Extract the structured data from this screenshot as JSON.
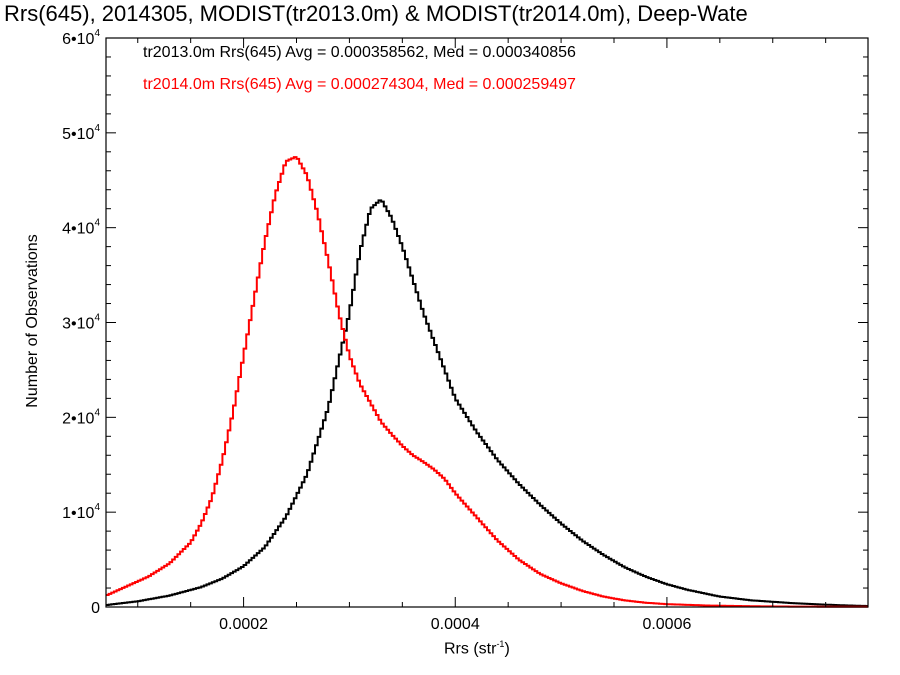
{
  "chart_data": {
    "type": "line",
    "title": "Rrs(645), 2014305, MODIST(tr2013.0m) & MODIST(tr2014.0m), Deep-Wate",
    "xlabel": "Rrs (str",
    "xlabel_exp": "-1",
    "xlabel_close": ")",
    "ylabel": "Number of Observations",
    "xlim": [
      7e-05,
      0.00079
    ],
    "ylim": [
      0,
      60000
    ],
    "x_ticks": [
      {
        "value": 0.0002,
        "label": "0.0002"
      },
      {
        "value": 0.0004,
        "label": "0.0004"
      },
      {
        "value": 0.0006,
        "label": "0.0006"
      }
    ],
    "y_ticks": [
      {
        "value": 0,
        "base": "0",
        "exp": ""
      },
      {
        "value": 10000,
        "base": "1•10",
        "exp": "4"
      },
      {
        "value": 20000,
        "base": "2•10",
        "exp": "4"
      },
      {
        "value": 30000,
        "base": "3•10",
        "exp": "4"
      },
      {
        "value": 40000,
        "base": "4•10",
        "exp": "4"
      },
      {
        "value": 50000,
        "base": "5•10",
        "exp": "4"
      },
      {
        "value": 60000,
        "base": "6•10",
        "exp": "4"
      }
    ],
    "series": [
      {
        "name": "tr2013.0m Rrs(645) Avg = 0.000358562, Med = 0.000340856",
        "color": "#000000",
        "points": [
          [
            7e-05,
            200
          ],
          [
            0.0001,
            600
          ],
          [
            0.00013,
            1200
          ],
          [
            0.00016,
            2100
          ],
          [
            0.00018,
            3000
          ],
          [
            0.0002,
            4300
          ],
          [
            0.00022,
            6300
          ],
          [
            0.00024,
            9500
          ],
          [
            0.00026,
            14000
          ],
          [
            0.00028,
            21000
          ],
          [
            0.0003,
            31000
          ],
          [
            0.00031,
            37500
          ],
          [
            0.00032,
            42000
          ],
          [
            0.00033,
            43000
          ],
          [
            0.00034,
            41000
          ],
          [
            0.00035,
            38000
          ],
          [
            0.00036,
            34500
          ],
          [
            0.00037,
            31000
          ],
          [
            0.00038,
            28000
          ],
          [
            0.00039,
            25000
          ],
          [
            0.0004,
            22000
          ],
          [
            0.00042,
            18500
          ],
          [
            0.00044,
            15500
          ],
          [
            0.00046,
            13000
          ],
          [
            0.00048,
            10800
          ],
          [
            0.0005,
            8800
          ],
          [
            0.00052,
            7000
          ],
          [
            0.00054,
            5500
          ],
          [
            0.00056,
            4200
          ],
          [
            0.00058,
            3200
          ],
          [
            0.0006,
            2400
          ],
          [
            0.00062,
            1800
          ],
          [
            0.00065,
            1100
          ],
          [
            0.00068,
            700
          ],
          [
            0.00072,
            400
          ],
          [
            0.00076,
            200
          ],
          [
            0.00079,
            100
          ]
        ]
      },
      {
        "name": "tr2014.0m Rrs(645) Avg = 0.000274304, Med = 0.000259497",
        "color": "#ff0000",
        "points": [
          [
            7e-05,
            1200
          ],
          [
            9e-05,
            2200
          ],
          [
            0.00011,
            3200
          ],
          [
            0.00013,
            4600
          ],
          [
            0.00015,
            6800
          ],
          [
            0.00016,
            8800
          ],
          [
            0.00017,
            11500
          ],
          [
            0.00018,
            15500
          ],
          [
            0.00019,
            20500
          ],
          [
            0.0002,
            26500
          ],
          [
            0.00021,
            32500
          ],
          [
            0.00022,
            38500
          ],
          [
            0.00023,
            43500
          ],
          [
            0.00024,
            47000
          ],
          [
            0.00025,
            47500
          ],
          [
            0.00026,
            45500
          ],
          [
            0.00027,
            41500
          ],
          [
            0.00028,
            36500
          ],
          [
            0.00029,
            31000
          ],
          [
            0.0003,
            26500
          ],
          [
            0.00031,
            23500
          ],
          [
            0.00032,
            21500
          ],
          [
            0.00033,
            19500
          ],
          [
            0.00034,
            18200
          ],
          [
            0.00035,
            17000
          ],
          [
            0.00036,
            16000
          ],
          [
            0.00037,
            15300
          ],
          [
            0.00038,
            14500
          ],
          [
            0.00039,
            13500
          ],
          [
            0.0004,
            12000
          ],
          [
            0.00042,
            9500
          ],
          [
            0.00044,
            7000
          ],
          [
            0.00046,
            5000
          ],
          [
            0.00048,
            3500
          ],
          [
            0.0005,
            2500
          ],
          [
            0.00052,
            1700
          ],
          [
            0.00054,
            1100
          ],
          [
            0.00056,
            700
          ],
          [
            0.00058,
            450
          ],
          [
            0.0006,
            300
          ],
          [
            0.00064,
            150
          ],
          [
            0.00068,
            80
          ],
          [
            0.00072,
            40
          ],
          [
            0.00079,
            20
          ]
        ]
      }
    ]
  }
}
